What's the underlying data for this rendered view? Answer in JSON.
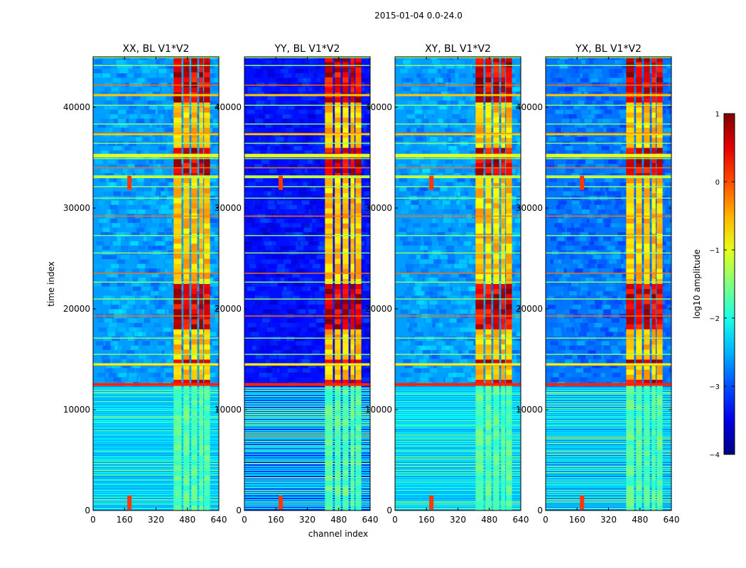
{
  "chart_data": {
    "type": "heatmap",
    "suptitle": "2015-01-04 0.0-24.0",
    "xlabel": "channel index",
    "ylabel": "time index",
    "xlim": [
      0,
      640
    ],
    "ylim": [
      0,
      45000
    ],
    "xticks": [
      0,
      160,
      320,
      480,
      640
    ],
    "xtick_labels": [
      "0",
      "160",
      "320",
      "480",
      "640"
    ],
    "yticks": [
      0,
      10000,
      20000,
      30000,
      40000
    ],
    "ytick_labels": [
      "0",
      "10000",
      "20000",
      "30000",
      "40000"
    ],
    "panels": [
      {
        "name": "xx",
        "title": "XX, BL V1*V2",
        "background_log_amplitude": -2.6
      },
      {
        "name": "yy",
        "title": "YY, BL V1*V2",
        "background_log_amplitude": -3.3
      },
      {
        "name": "xy",
        "title": "XY, BL V1*V2",
        "background_log_amplitude": -2.6
      },
      {
        "name": "yx",
        "title": "YX, BL V1*V2",
        "background_log_amplitude": -2.8
      }
    ],
    "rfi_channel_band": [
      410,
      600
    ],
    "rfi_channel_columns": [
      [
        410,
        450
      ],
      [
        460,
        490
      ],
      [
        500,
        530
      ],
      [
        540,
        560
      ],
      [
        565,
        595
      ]
    ],
    "strong_time_bands": [
      [
        33000,
        35500
      ],
      [
        18000,
        22000
      ],
      [
        40500,
        44500
      ],
      [
        12300,
        12700
      ],
      [
        14300,
        14700
      ]
    ],
    "sparse_region_below_time": 12300,
    "colorbar": {
      "label": "log10 amplitude",
      "min": -4,
      "max": 1,
      "ticks": [
        1,
        0,
        -1,
        -2,
        -3,
        -4
      ],
      "tick_labels": [
        "1",
        "0",
        "−1",
        "−2",
        "−3",
        "−4"
      ],
      "colormap": "jet"
    }
  }
}
